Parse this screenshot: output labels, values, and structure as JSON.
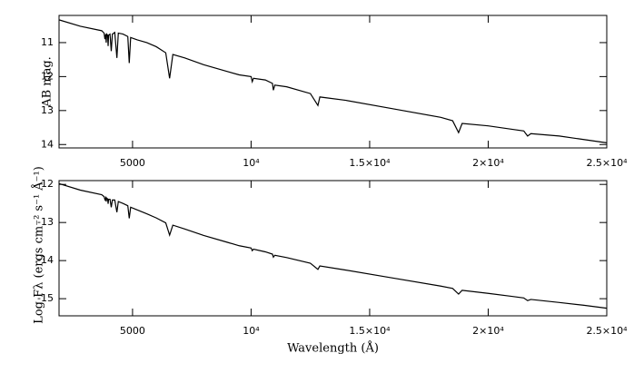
{
  "chart_data": [
    {
      "type": "line",
      "y_label": "AB mag.",
      "x": [
        1900,
        2800,
        3700,
        3800,
        3835,
        3870,
        3889,
        3910,
        3950,
        3970,
        3990,
        4050,
        4102,
        4150,
        4250,
        4340,
        4400,
        4600,
        4800,
        4861,
        4920,
        5200,
        5600,
        6000,
        6400,
        6563,
        6700,
        7200,
        8000,
        9000,
        9500,
        10000,
        10049,
        10100,
        10600,
        10900,
        10940,
        11000,
        11500,
        12500,
        12818,
        12900,
        14000,
        16000,
        18000,
        18500,
        18751,
        18900,
        20000,
        21000,
        21500,
        21661,
        21800,
        23000,
        24000,
        25000
      ],
      "series": [
        {
          "color": "#000000",
          "values": [
            10.33,
            10.52,
            10.65,
            10.72,
            10.9,
            10.75,
            11.0,
            10.75,
            10.78,
            11.1,
            10.78,
            10.75,
            11.25,
            10.75,
            10.7,
            11.45,
            10.72,
            10.75,
            10.82,
            11.6,
            10.85,
            10.92,
            11.0,
            11.12,
            11.3,
            12.05,
            11.35,
            11.45,
            11.65,
            11.85,
            11.95,
            12.0,
            12.15,
            12.05,
            12.1,
            12.2,
            12.4,
            12.25,
            12.3,
            12.5,
            12.85,
            12.6,
            12.7,
            12.95,
            13.2,
            13.3,
            13.65,
            13.38,
            13.45,
            13.55,
            13.6,
            13.75,
            13.68,
            13.75,
            13.85,
            13.95
          ]
        }
      ],
      "xlim": [
        1900,
        25000
      ],
      "ylim": [
        14.1,
        10.2
      ],
      "xticks": [
        5000,
        {
          "value": 10000,
          "label": "10⁴"
        },
        {
          "value": 15000,
          "label": "1.5×10⁴"
        },
        {
          "value": 20000,
          "label": "2×10⁴"
        },
        {
          "value": 25000,
          "label": "2.5×10⁴"
        }
      ],
      "yticks": [
        11,
        12,
        13,
        14
      ]
    },
    {
      "type": "line",
      "y_label": "Log Fλ (ergs cm⁻² s⁻¹ Å⁻¹)",
      "x_label": "Wavelength (Å)",
      "x": [
        1900,
        2800,
        3700,
        3800,
        3835,
        3870,
        3889,
        3910,
        3950,
        3970,
        3990,
        4050,
        4102,
        4150,
        4250,
        4340,
        4400,
        4600,
        4800,
        4861,
        4920,
        5200,
        5600,
        6000,
        6400,
        6563,
        6700,
        7200,
        8000,
        9000,
        9500,
        10000,
        10049,
        10100,
        10600,
        10900,
        10940,
        11000,
        11500,
        12500,
        12818,
        12900,
        14000,
        16000,
        18000,
        18500,
        18751,
        18900,
        20000,
        21000,
        21500,
        21661,
        21800,
        23000,
        24000,
        25000
      ],
      "series": [
        {
          "color": "#000000",
          "values": [
            -11.98,
            -12.15,
            -12.27,
            -12.32,
            -12.4,
            -12.35,
            -12.45,
            -12.36,
            -12.38,
            -12.51,
            -12.39,
            -12.39,
            -12.6,
            -12.41,
            -12.41,
            -12.73,
            -12.45,
            -12.5,
            -12.56,
            -12.89,
            -12.6,
            -12.67,
            -12.77,
            -12.88,
            -13.01,
            -13.33,
            -13.07,
            -13.17,
            -13.34,
            -13.52,
            -13.61,
            -13.67,
            -13.74,
            -13.7,
            -13.77,
            -13.83,
            -13.91,
            -13.86,
            -13.92,
            -14.07,
            -14.23,
            -14.14,
            -14.25,
            -14.46,
            -14.67,
            -14.73,
            -14.88,
            -14.78,
            -14.86,
            -14.94,
            -14.98,
            -15.05,
            -15.02,
            -15.1,
            -15.17,
            -15.25
          ]
        }
      ],
      "xlim": [
        1900,
        25000
      ],
      "ylim": [
        -15.45,
        -11.9
      ],
      "xticks": [
        5000,
        {
          "value": 10000,
          "label": "10⁴"
        },
        {
          "value": 15000,
          "label": "1.5×10⁴"
        },
        {
          "value": 20000,
          "label": "2×10⁴"
        },
        {
          "value": 25000,
          "label": "2.5×10⁴"
        }
      ],
      "yticks": [
        -12,
        -13,
        -14,
        -15
      ]
    }
  ]
}
